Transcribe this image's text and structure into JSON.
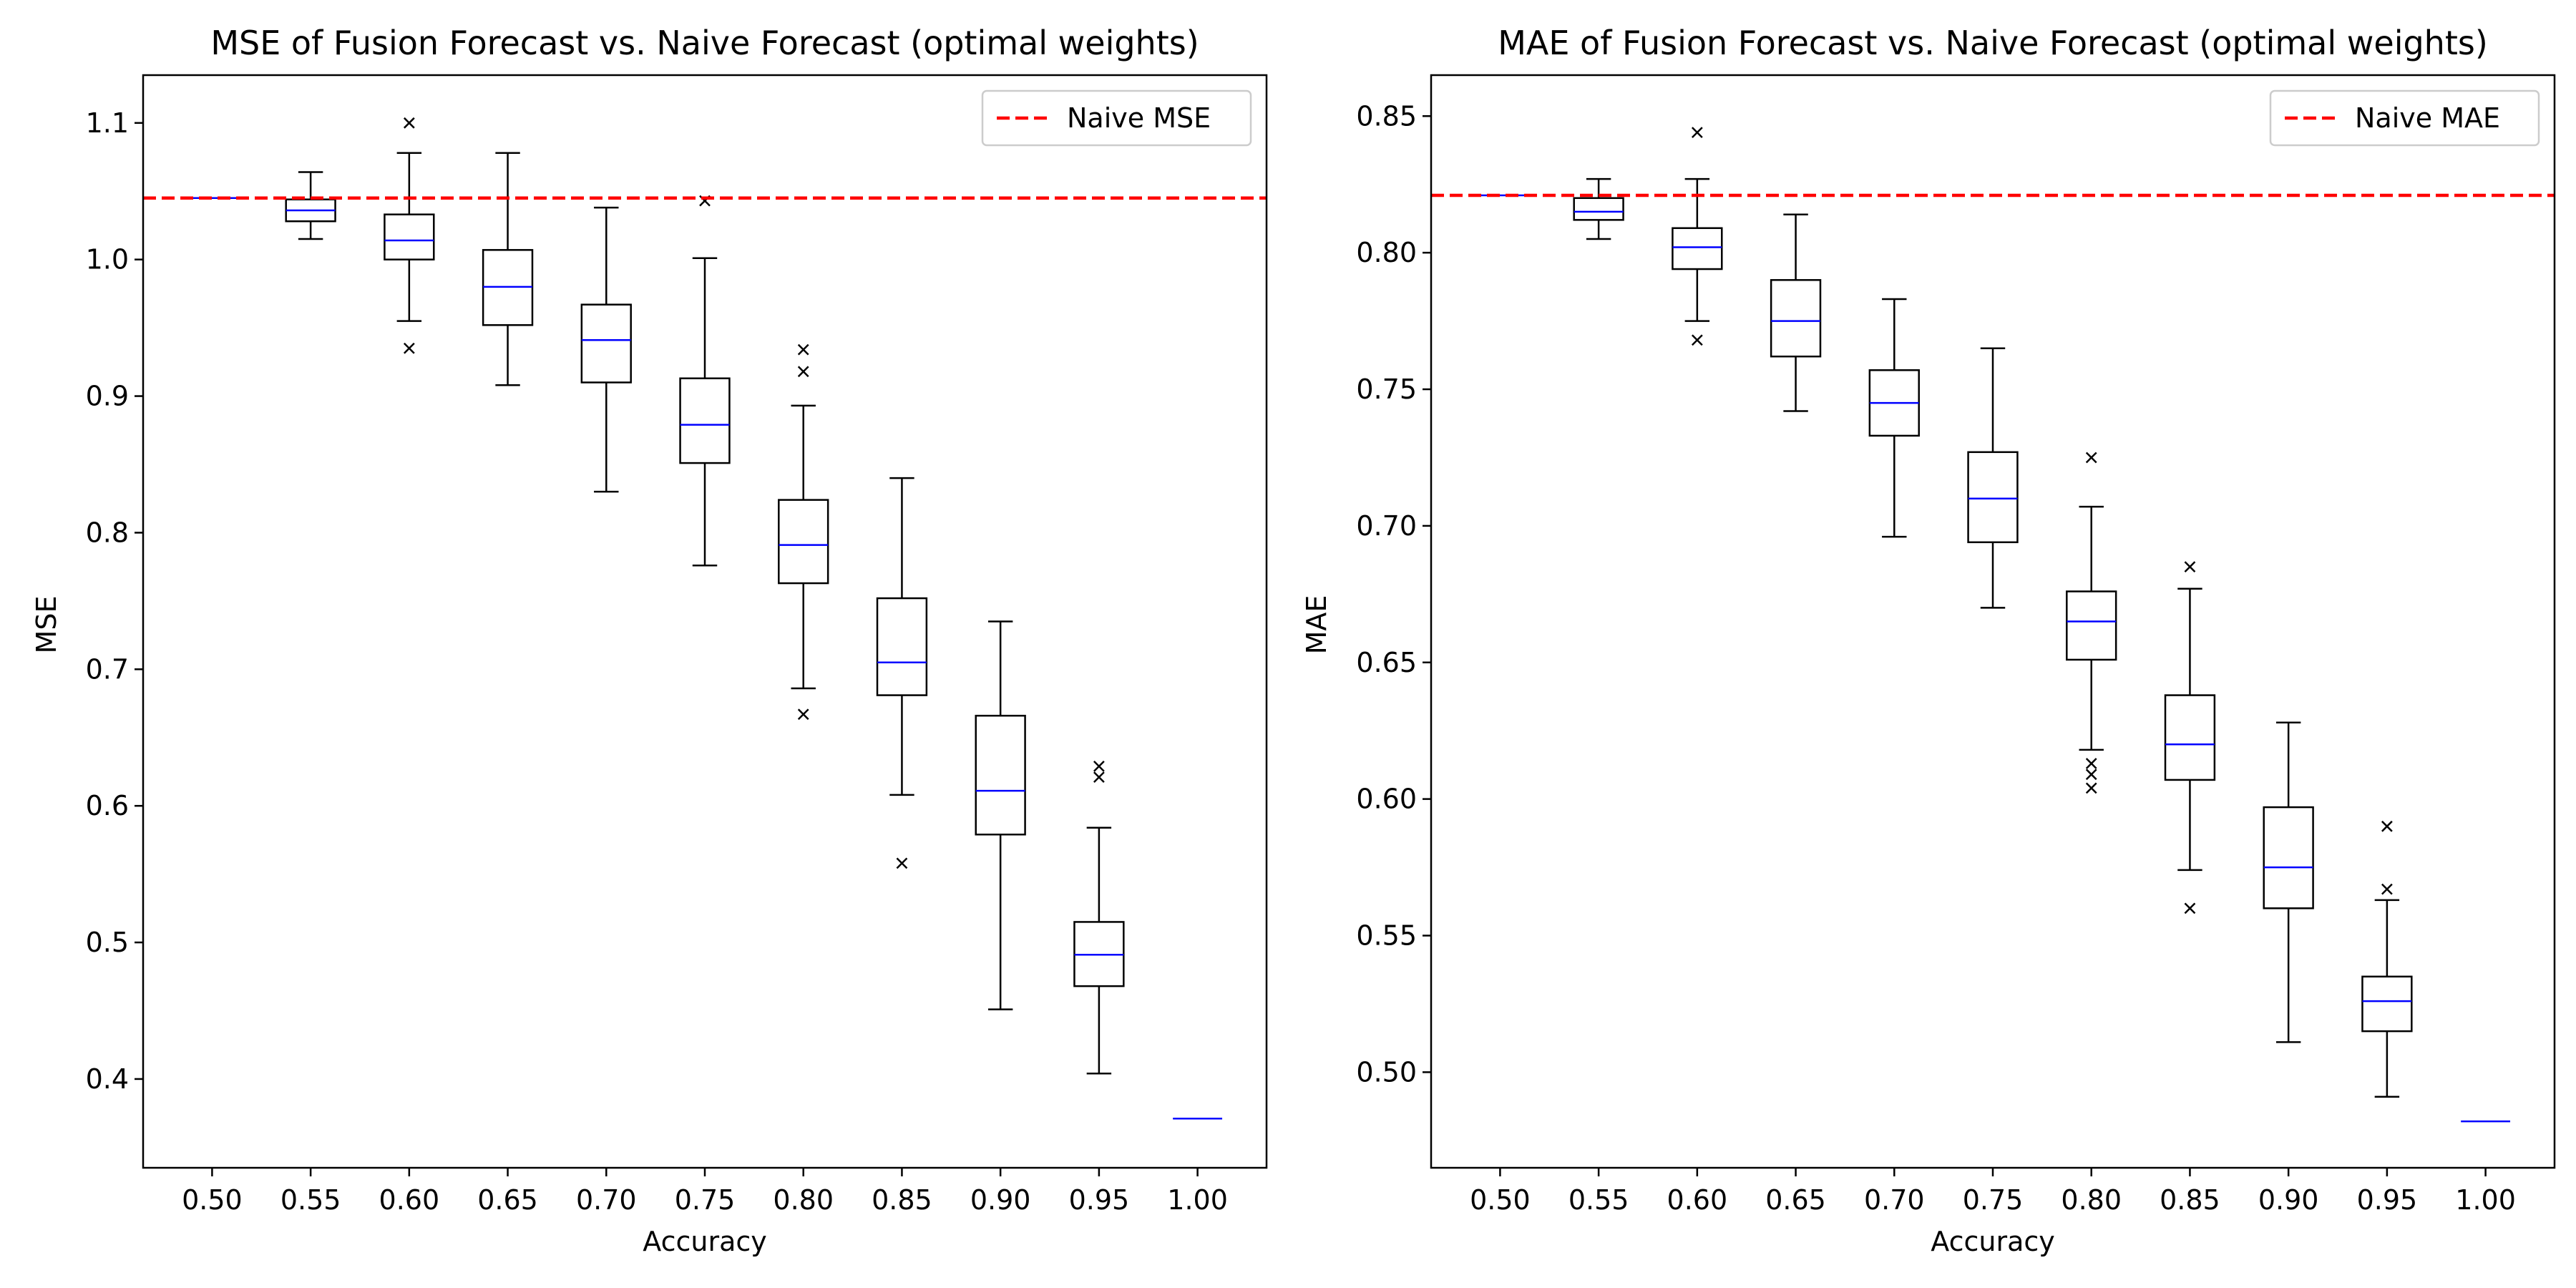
{
  "figure": {
    "title": "",
    "colors": {
      "box": "#000000",
      "median": "#0000ff",
      "naive_line": "#ff0000",
      "legend_border": "#cccccc",
      "background": "#ffffff"
    }
  },
  "chart_data": [
    {
      "type": "boxplot",
      "title": "MSE of Fusion Forecast vs. Naive Forecast (optimal weights)",
      "xlabel": "Accuracy",
      "ylabel": "MSE",
      "ylim": [
        0.335,
        1.135
      ],
      "yticks": [
        0.4,
        0.5,
        0.6,
        0.7,
        0.8,
        0.9,
        1.0,
        1.1
      ],
      "ytick_labels": [
        "0.4",
        "0.5",
        "0.6",
        "0.7",
        "0.8",
        "0.9",
        "1.0",
        "1.1"
      ],
      "categories": [
        "0.50",
        "0.55",
        "0.60",
        "0.65",
        "0.70",
        "0.75",
        "0.80",
        "0.85",
        "0.90",
        "0.95",
        "1.00"
      ],
      "reference_line": {
        "label": "Naive MSE",
        "value": 1.045
      },
      "legend": {
        "position": "top-right",
        "entries": [
          "Naive MSE"
        ]
      },
      "boxes": [
        {
          "min": 1.045,
          "q1": 1.045,
          "median": 1.045,
          "q3": 1.045,
          "max": 1.045,
          "outliers": []
        },
        {
          "min": 1.015,
          "q1": 1.028,
          "median": 1.036,
          "q3": 1.044,
          "max": 1.064,
          "outliers": []
        },
        {
          "min": 0.955,
          "q1": 1.0,
          "median": 1.014,
          "q3": 1.033,
          "max": 1.078,
          "outliers": [
            1.1,
            0.935
          ]
        },
        {
          "min": 0.908,
          "q1": 0.952,
          "median": 0.98,
          "q3": 1.007,
          "max": 1.078,
          "outliers": []
        },
        {
          "min": 0.83,
          "q1": 0.91,
          "median": 0.941,
          "q3": 0.967,
          "max": 1.038,
          "outliers": []
        },
        {
          "min": 0.776,
          "q1": 0.851,
          "median": 0.879,
          "q3": 0.913,
          "max": 1.001,
          "outliers": [
            1.043
          ]
        },
        {
          "min": 0.686,
          "q1": 0.763,
          "median": 0.791,
          "q3": 0.824,
          "max": 0.893,
          "outliers": [
            0.934,
            0.918,
            0.667
          ]
        },
        {
          "min": 0.608,
          "q1": 0.681,
          "median": 0.705,
          "q3": 0.752,
          "max": 0.84,
          "outliers": [
            0.558
          ]
        },
        {
          "min": 0.451,
          "q1": 0.579,
          "median": 0.611,
          "q3": 0.666,
          "max": 0.735,
          "outliers": []
        },
        {
          "min": 0.404,
          "q1": 0.468,
          "median": 0.491,
          "q3": 0.515,
          "max": 0.584,
          "outliers": [
            0.629,
            0.621
          ]
        },
        {
          "min": 0.371,
          "q1": 0.371,
          "median": 0.371,
          "q3": 0.371,
          "max": 0.371,
          "outliers": []
        }
      ]
    },
    {
      "type": "boxplot",
      "title": "MAE of Fusion Forecast vs. Naive Forecast (optimal weights)",
      "xlabel": "Accuracy",
      "ylabel": "MAE",
      "ylim": [
        0.465,
        0.865
      ],
      "yticks": [
        0.5,
        0.55,
        0.6,
        0.65,
        0.7,
        0.75,
        0.8,
        0.85
      ],
      "ytick_labels": [
        "0.50",
        "0.55",
        "0.60",
        "0.65",
        "0.70",
        "0.75",
        "0.80",
        "0.85"
      ],
      "categories": [
        "0.50",
        "0.55",
        "0.60",
        "0.65",
        "0.70",
        "0.75",
        "0.80",
        "0.85",
        "0.90",
        "0.95",
        "1.00"
      ],
      "reference_line": {
        "label": "Naive MAE",
        "value": 0.821
      },
      "legend": {
        "position": "top-right",
        "entries": [
          "Naive MAE"
        ]
      },
      "boxes": [
        {
          "min": 0.821,
          "q1": 0.821,
          "median": 0.821,
          "q3": 0.821,
          "max": 0.821,
          "outliers": []
        },
        {
          "min": 0.805,
          "q1": 0.812,
          "median": 0.815,
          "q3": 0.82,
          "max": 0.827,
          "outliers": []
        },
        {
          "min": 0.775,
          "q1": 0.794,
          "median": 0.802,
          "q3": 0.809,
          "max": 0.827,
          "outliers": [
            0.844,
            0.768
          ]
        },
        {
          "min": 0.742,
          "q1": 0.762,
          "median": 0.775,
          "q3": 0.79,
          "max": 0.814,
          "outliers": []
        },
        {
          "min": 0.696,
          "q1": 0.733,
          "median": 0.745,
          "q3": 0.757,
          "max": 0.783,
          "outliers": []
        },
        {
          "min": 0.67,
          "q1": 0.694,
          "median": 0.71,
          "q3": 0.727,
          "max": 0.765,
          "outliers": []
        },
        {
          "min": 0.618,
          "q1": 0.651,
          "median": 0.665,
          "q3": 0.676,
          "max": 0.707,
          "outliers": [
            0.725,
            0.613,
            0.609,
            0.604
          ]
        },
        {
          "min": 0.574,
          "q1": 0.607,
          "median": 0.62,
          "q3": 0.638,
          "max": 0.677,
          "outliers": [
            0.685,
            0.56
          ]
        },
        {
          "min": 0.511,
          "q1": 0.56,
          "median": 0.575,
          "q3": 0.597,
          "max": 0.628,
          "outliers": []
        },
        {
          "min": 0.491,
          "q1": 0.515,
          "median": 0.526,
          "q3": 0.535,
          "max": 0.563,
          "outliers": [
            0.59,
            0.567
          ]
        },
        {
          "min": 0.482,
          "q1": 0.482,
          "median": 0.482,
          "q3": 0.482,
          "max": 0.482,
          "outliers": []
        }
      ]
    }
  ]
}
